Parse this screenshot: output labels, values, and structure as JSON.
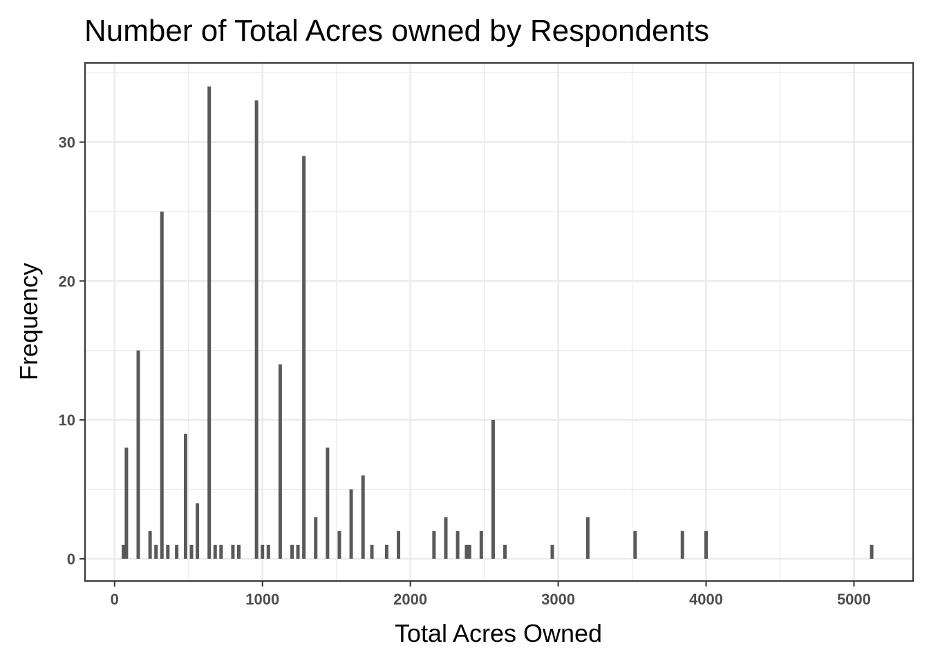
{
  "chart_data": {
    "type": "bar",
    "title": "Number of Total Acres owned by Respondents",
    "xlabel": "Total Acres Owned",
    "ylabel": "Frequency",
    "xlim": [
      -200,
      5400
    ],
    "ylim": [
      -1.6,
      35.7
    ],
    "x_ticks": [
      0,
      1000,
      2000,
      3000,
      4000,
      5000
    ],
    "y_ticks": [
      0,
      10,
      20,
      30
    ],
    "grid": true,
    "bar_color": "#595959",
    "bars": [
      {
        "x": 60,
        "y": 1
      },
      {
        "x": 80,
        "y": 8
      },
      {
        "x": 160,
        "y": 15
      },
      {
        "x": 240,
        "y": 2
      },
      {
        "x": 280,
        "y": 1
      },
      {
        "x": 320,
        "y": 25
      },
      {
        "x": 360,
        "y": 1
      },
      {
        "x": 420,
        "y": 1
      },
      {
        "x": 480,
        "y": 9
      },
      {
        "x": 520,
        "y": 1
      },
      {
        "x": 560,
        "y": 4
      },
      {
        "x": 640,
        "y": 34
      },
      {
        "x": 680,
        "y": 1
      },
      {
        "x": 720,
        "y": 1
      },
      {
        "x": 800,
        "y": 1
      },
      {
        "x": 840,
        "y": 1
      },
      {
        "x": 960,
        "y": 33
      },
      {
        "x": 1000,
        "y": 1
      },
      {
        "x": 1040,
        "y": 1
      },
      {
        "x": 1120,
        "y": 14
      },
      {
        "x": 1200,
        "y": 1
      },
      {
        "x": 1240,
        "y": 1
      },
      {
        "x": 1280,
        "y": 29
      },
      {
        "x": 1360,
        "y": 3
      },
      {
        "x": 1440,
        "y": 8
      },
      {
        "x": 1520,
        "y": 2
      },
      {
        "x": 1600,
        "y": 5
      },
      {
        "x": 1680,
        "y": 6
      },
      {
        "x": 1740,
        "y": 1
      },
      {
        "x": 1840,
        "y": 1
      },
      {
        "x": 1920,
        "y": 2
      },
      {
        "x": 2160,
        "y": 2
      },
      {
        "x": 2240,
        "y": 3
      },
      {
        "x": 2320,
        "y": 2
      },
      {
        "x": 2380,
        "y": 1
      },
      {
        "x": 2400,
        "y": 1
      },
      {
        "x": 2480,
        "y": 2
      },
      {
        "x": 2560,
        "y": 10
      },
      {
        "x": 2640,
        "y": 1
      },
      {
        "x": 2960,
        "y": 1
      },
      {
        "x": 3200,
        "y": 3
      },
      {
        "x": 3520,
        "y": 2
      },
      {
        "x": 3840,
        "y": 2
      },
      {
        "x": 4000,
        "y": 2
      },
      {
        "x": 5120,
        "y": 1
      }
    ]
  }
}
